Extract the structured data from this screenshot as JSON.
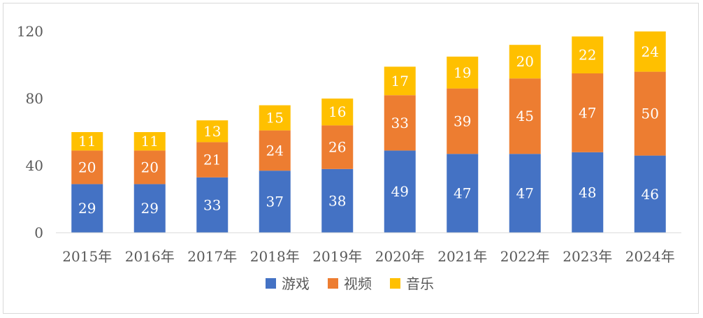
{
  "chart_data": {
    "type": "bar",
    "stacked": true,
    "title": "",
    "xlabel": "",
    "ylabel": "",
    "ylim": [
      0,
      120
    ],
    "yticks": [
      0,
      40,
      80,
      120
    ],
    "grid": false,
    "legend_position": "bottom",
    "categories": [
      "2015年",
      "2016年",
      "2017年",
      "2018年",
      "2019年",
      "2020年",
      "2021年",
      "2022年",
      "2023年",
      "2024年"
    ],
    "series": [
      {
        "name": "游戏",
        "color": "#4472c4",
        "values": [
          29,
          29,
          33,
          37,
          38,
          49,
          47,
          47,
          48,
          46
        ]
      },
      {
        "name": "视频",
        "color": "#ed7d31",
        "values": [
          20,
          20,
          21,
          24,
          26,
          33,
          39,
          45,
          47,
          50
        ]
      },
      {
        "name": "音乐",
        "color": "#ffc000",
        "values": [
          11,
          11,
          13,
          15,
          16,
          17,
          19,
          20,
          22,
          24
        ]
      }
    ]
  }
}
